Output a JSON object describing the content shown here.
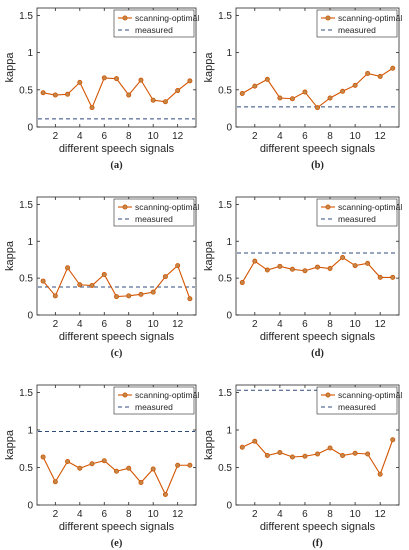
{
  "colors": {
    "series": "#d35400",
    "marker_fill": "#c2884a",
    "measured": "#2f4b7c",
    "axis": "#262626",
    "grid_text": "#262626"
  },
  "chart_data": [
    {
      "type": "line",
      "caption": "(a)",
      "xlabel": "different speech signals",
      "ylabel": "kappa",
      "xlim": [
        0.5,
        13.5
      ],
      "ylim": [
        0,
        1.6
      ],
      "xticks": [
        2,
        4,
        6,
        8,
        10,
        12
      ],
      "yticks": [
        0,
        0.5,
        1,
        1.5
      ],
      "ytick_labels": [
        "0",
        "0.5",
        "1",
        "1.5"
      ],
      "legend": "top-right",
      "x": [
        1,
        2,
        3,
        4,
        5,
        6,
        7,
        8,
        9,
        10,
        11,
        12,
        13
      ],
      "series": [
        {
          "name": "scanning-optimal",
          "values": [
            0.46,
            0.43,
            0.44,
            0.6,
            0.26,
            0.66,
            0.65,
            0.43,
            0.63,
            0.36,
            0.34,
            0.49,
            0.62
          ]
        },
        {
          "name": "measured",
          "values": [
            0.11,
            0.11,
            0.11,
            0.11,
            0.11,
            0.11,
            0.11,
            0.11,
            0.11,
            0.11,
            0.11,
            0.11,
            0.11
          ]
        }
      ]
    },
    {
      "type": "line",
      "caption": "(b)",
      "xlabel": "different speech signals",
      "ylabel": "kappa",
      "xlim": [
        0.5,
        13.5
      ],
      "ylim": [
        0,
        1.6
      ],
      "xticks": [
        2,
        4,
        6,
        8,
        10,
        12
      ],
      "yticks": [
        0,
        0.5,
        1,
        1.5
      ],
      "ytick_labels": [
        "0",
        "0.5",
        "1",
        "1.5"
      ],
      "legend": "top-right",
      "x": [
        1,
        2,
        3,
        4,
        5,
        6,
        7,
        8,
        9,
        10,
        11,
        12,
        13
      ],
      "series": [
        {
          "name": "scanning-optimal",
          "values": [
            0.45,
            0.55,
            0.64,
            0.39,
            0.38,
            0.47,
            0.26,
            0.39,
            0.48,
            0.56,
            0.72,
            0.68,
            0.79
          ]
        },
        {
          "name": "measured",
          "values": [
            0.27,
            0.27,
            0.27,
            0.27,
            0.27,
            0.27,
            0.27,
            0.27,
            0.27,
            0.27,
            0.27,
            0.27,
            0.27
          ]
        }
      ]
    },
    {
      "type": "line",
      "caption": "(c)",
      "xlabel": "different speech signals",
      "ylabel": "kappa",
      "xlim": [
        0.5,
        13.5
      ],
      "ylim": [
        0,
        1.6
      ],
      "xticks": [
        2,
        4,
        6,
        8,
        10,
        12
      ],
      "yticks": [
        0,
        0.5,
        1,
        1.5
      ],
      "ytick_labels": [
        "0",
        "0.5",
        "1",
        "1.5"
      ],
      "legend": "top-right",
      "x": [
        1,
        2,
        3,
        4,
        5,
        6,
        7,
        8,
        9,
        10,
        11,
        12,
        13
      ],
      "series": [
        {
          "name": "scanning-optimal",
          "values": [
            0.46,
            0.26,
            0.64,
            0.41,
            0.4,
            0.55,
            0.25,
            0.26,
            0.28,
            0.31,
            0.52,
            0.67,
            0.22
          ]
        },
        {
          "name": "measured",
          "values": [
            0.38,
            0.38,
            0.38,
            0.38,
            0.38,
            0.38,
            0.38,
            0.38,
            0.38,
            0.38,
            0.38,
            0.38,
            0.38
          ]
        }
      ]
    },
    {
      "type": "line",
      "caption": "(d)",
      "xlabel": "different speech signals",
      "ylabel": "kappa",
      "xlim": [
        0.5,
        13.5
      ],
      "ylim": [
        0,
        1.6
      ],
      "xticks": [
        2,
        4,
        6,
        8,
        10,
        12
      ],
      "yticks": [
        0,
        0.5,
        1,
        1.5
      ],
      "ytick_labels": [
        "0",
        "0.5",
        "1",
        "1.5"
      ],
      "legend": "top-right",
      "x": [
        1,
        2,
        3,
        4,
        5,
        6,
        7,
        8,
        9,
        10,
        11,
        12,
        13
      ],
      "series": [
        {
          "name": "scanning-optimal",
          "values": [
            0.44,
            0.73,
            0.61,
            0.66,
            0.62,
            0.6,
            0.65,
            0.63,
            0.78,
            0.67,
            0.7,
            0.51,
            0.51
          ]
        },
        {
          "name": "measured",
          "values": [
            0.84,
            0.84,
            0.84,
            0.84,
            0.84,
            0.84,
            0.84,
            0.84,
            0.84,
            0.84,
            0.84,
            0.84,
            0.84
          ]
        }
      ]
    },
    {
      "type": "line",
      "caption": "(e)",
      "xlabel": "different speech signals",
      "ylabel": "kappa",
      "xlim": [
        0.5,
        13.5
      ],
      "ylim": [
        0,
        1.6
      ],
      "xticks": [
        2,
        4,
        6,
        8,
        10,
        12
      ],
      "yticks": [
        0,
        0.5,
        1,
        1.5
      ],
      "ytick_labels": [
        "0",
        "0.5",
        "1",
        "1.5"
      ],
      "legend": "top-right",
      "x": [
        1,
        2,
        3,
        4,
        5,
        6,
        7,
        8,
        9,
        10,
        11,
        12,
        13
      ],
      "series": [
        {
          "name": "scanning-optimal",
          "values": [
            0.64,
            0.31,
            0.58,
            0.49,
            0.55,
            0.59,
            0.45,
            0.49,
            0.3,
            0.48,
            0.14,
            0.53,
            0.53
          ]
        },
        {
          "name": "measured",
          "values": [
            0.98,
            0.98,
            0.98,
            0.98,
            0.98,
            0.98,
            0.98,
            0.98,
            0.98,
            0.98,
            0.98,
            0.98,
            0.98
          ]
        }
      ]
    },
    {
      "type": "line",
      "caption": "(f)",
      "xlabel": "different speech signals",
      "ylabel": "kappa",
      "xlim": [
        0.5,
        13.5
      ],
      "ylim": [
        0,
        1.6
      ],
      "xticks": [
        2,
        4,
        6,
        8,
        10,
        12
      ],
      "yticks": [
        0,
        0.5,
        1,
        1.5
      ],
      "ytick_labels": [
        "0",
        "0.5",
        "1",
        "1.5"
      ],
      "legend": "top-right",
      "x": [
        1,
        2,
        3,
        4,
        5,
        6,
        7,
        8,
        9,
        10,
        11,
        12,
        13
      ],
      "series": [
        {
          "name": "scanning-optimal",
          "values": [
            0.77,
            0.85,
            0.66,
            0.7,
            0.64,
            0.65,
            0.68,
            0.76,
            0.66,
            0.69,
            0.68,
            0.41,
            0.87
          ]
        },
        {
          "name": "measured",
          "values": [
            1.53,
            1.53,
            1.53,
            1.53,
            1.53,
            1.53,
            1.53,
            1.53,
            1.53,
            1.53,
            1.53,
            1.53,
            1.53
          ]
        }
      ]
    }
  ]
}
